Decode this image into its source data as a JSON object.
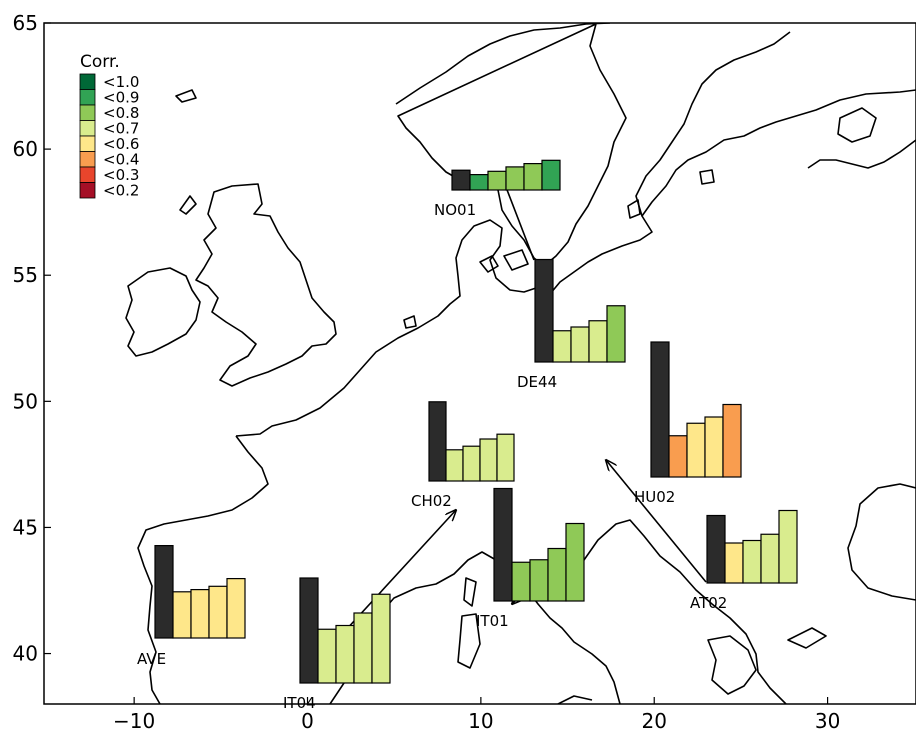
{
  "axes": {
    "x_ticks": [
      -10,
      0,
      10,
      20,
      30
    ],
    "y_ticks": [
      40,
      45,
      50,
      55,
      60,
      65
    ],
    "xlim": [
      -15.2,
      35.1
    ],
    "ylim": [
      38.0,
      65.0
    ],
    "x_tick_labels": [
      "−10",
      "0",
      "10",
      "20",
      "30"
    ],
    "y_tick_labels": [
      "40",
      "45",
      "50",
      "55",
      "60",
      "65"
    ]
  },
  "legend": {
    "title": "Corr.",
    "entries": [
      {
        "label": "<1.0",
        "color": "#006837"
      },
      {
        "label": "<0.9",
        "color": "#31a354"
      },
      {
        "label": "<0.8",
        "color": "#8fc957"
      },
      {
        "label": "<0.7",
        "color": "#d9ec8e"
      },
      {
        "label": "<0.6",
        "color": "#fee78a"
      },
      {
        "label": "<0.4",
        "color": "#f99d4f"
      },
      {
        "label": "<0.3",
        "color": "#e8452c"
      },
      {
        "label": "<0.2",
        "color": "#a50f26"
      }
    ]
  },
  "colors": {
    "reference_bar": "#2b2b2b",
    "coastline": "#000000"
  },
  "stations": [
    {
      "name": "NO01",
      "bars": [
        {
          "value": 0.9,
          "color": "#2b2b2b"
        },
        {
          "value": 0.7,
          "color": "#31a354"
        },
        {
          "value": 0.85,
          "color": "#8fc957"
        },
        {
          "value": 1.05,
          "color": "#8fc957"
        },
        {
          "value": 1.2,
          "color": "#8fc957"
        },
        {
          "value": 1.35,
          "color": "#31a354"
        }
      ]
    },
    {
      "name": "DE44",
      "bars": [
        {
          "value": 4.1,
          "color": "#2b2b2b"
        },
        {
          "value": 1.25,
          "color": "#d9ec8e"
        },
        {
          "value": 1.4,
          "color": "#d9ec8e"
        },
        {
          "value": 1.65,
          "color": "#d9ec8e"
        },
        {
          "value": 2.25,
          "color": "#8fc957"
        }
      ]
    },
    {
      "name": "CH02",
      "bars": [
        {
          "value": 3.3,
          "color": "#2b2b2b"
        },
        {
          "value": 1.3,
          "color": "#d9ec8e"
        },
        {
          "value": 1.45,
          "color": "#d9ec8e"
        },
        {
          "value": 1.75,
          "color": "#d9ec8e"
        },
        {
          "value": 1.95,
          "color": "#d9ec8e"
        }
      ]
    },
    {
      "name": "HU02",
      "bars": [
        {
          "value": 5.4,
          "color": "#2b2b2b"
        },
        {
          "value": 1.65,
          "color": "#f99d4f"
        },
        {
          "value": 2.15,
          "color": "#fee78a"
        },
        {
          "value": 2.4,
          "color": "#fee78a"
        },
        {
          "value": 2.9,
          "color": "#f99d4f"
        }
      ]
    },
    {
      "name": "IT01",
      "bars": [
        {
          "value": 4.5,
          "color": "#2b2b2b"
        },
        {
          "value": 1.55,
          "color": "#8fc957"
        },
        {
          "value": 1.65,
          "color": "#8fc957"
        },
        {
          "value": 2.1,
          "color": "#8fc957"
        },
        {
          "value": 3.1,
          "color": "#8fc957"
        }
      ]
    },
    {
      "name": "AT02",
      "bars": [
        {
          "value": 2.7,
          "color": "#2b2b2b"
        },
        {
          "value": 1.6,
          "color": "#fee78a"
        },
        {
          "value": 1.7,
          "color": "#d9ec8e"
        },
        {
          "value": 1.95,
          "color": "#d9ec8e"
        },
        {
          "value": 2.9,
          "color": "#d9ec8e"
        }
      ]
    },
    {
      "name": "AVE",
      "bars": [
        {
          "value": 4.2,
          "color": "#2b2b2b"
        },
        {
          "value": 2.1,
          "color": "#fee78a"
        },
        {
          "value": 2.2,
          "color": "#fee78a"
        },
        {
          "value": 2.35,
          "color": "#fee78a"
        },
        {
          "value": 2.7,
          "color": "#fee78a"
        }
      ]
    },
    {
      "name": "IT04",
      "bars": [
        {
          "value": 4.2,
          "color": "#2b2b2b"
        },
        {
          "value": 2.15,
          "color": "#d9ec8e"
        },
        {
          "value": 2.3,
          "color": "#d9ec8e"
        },
        {
          "value": 2.8,
          "color": "#d9ec8e"
        },
        {
          "value": 3.55,
          "color": "#d9ec8e"
        }
      ]
    }
  ]
}
